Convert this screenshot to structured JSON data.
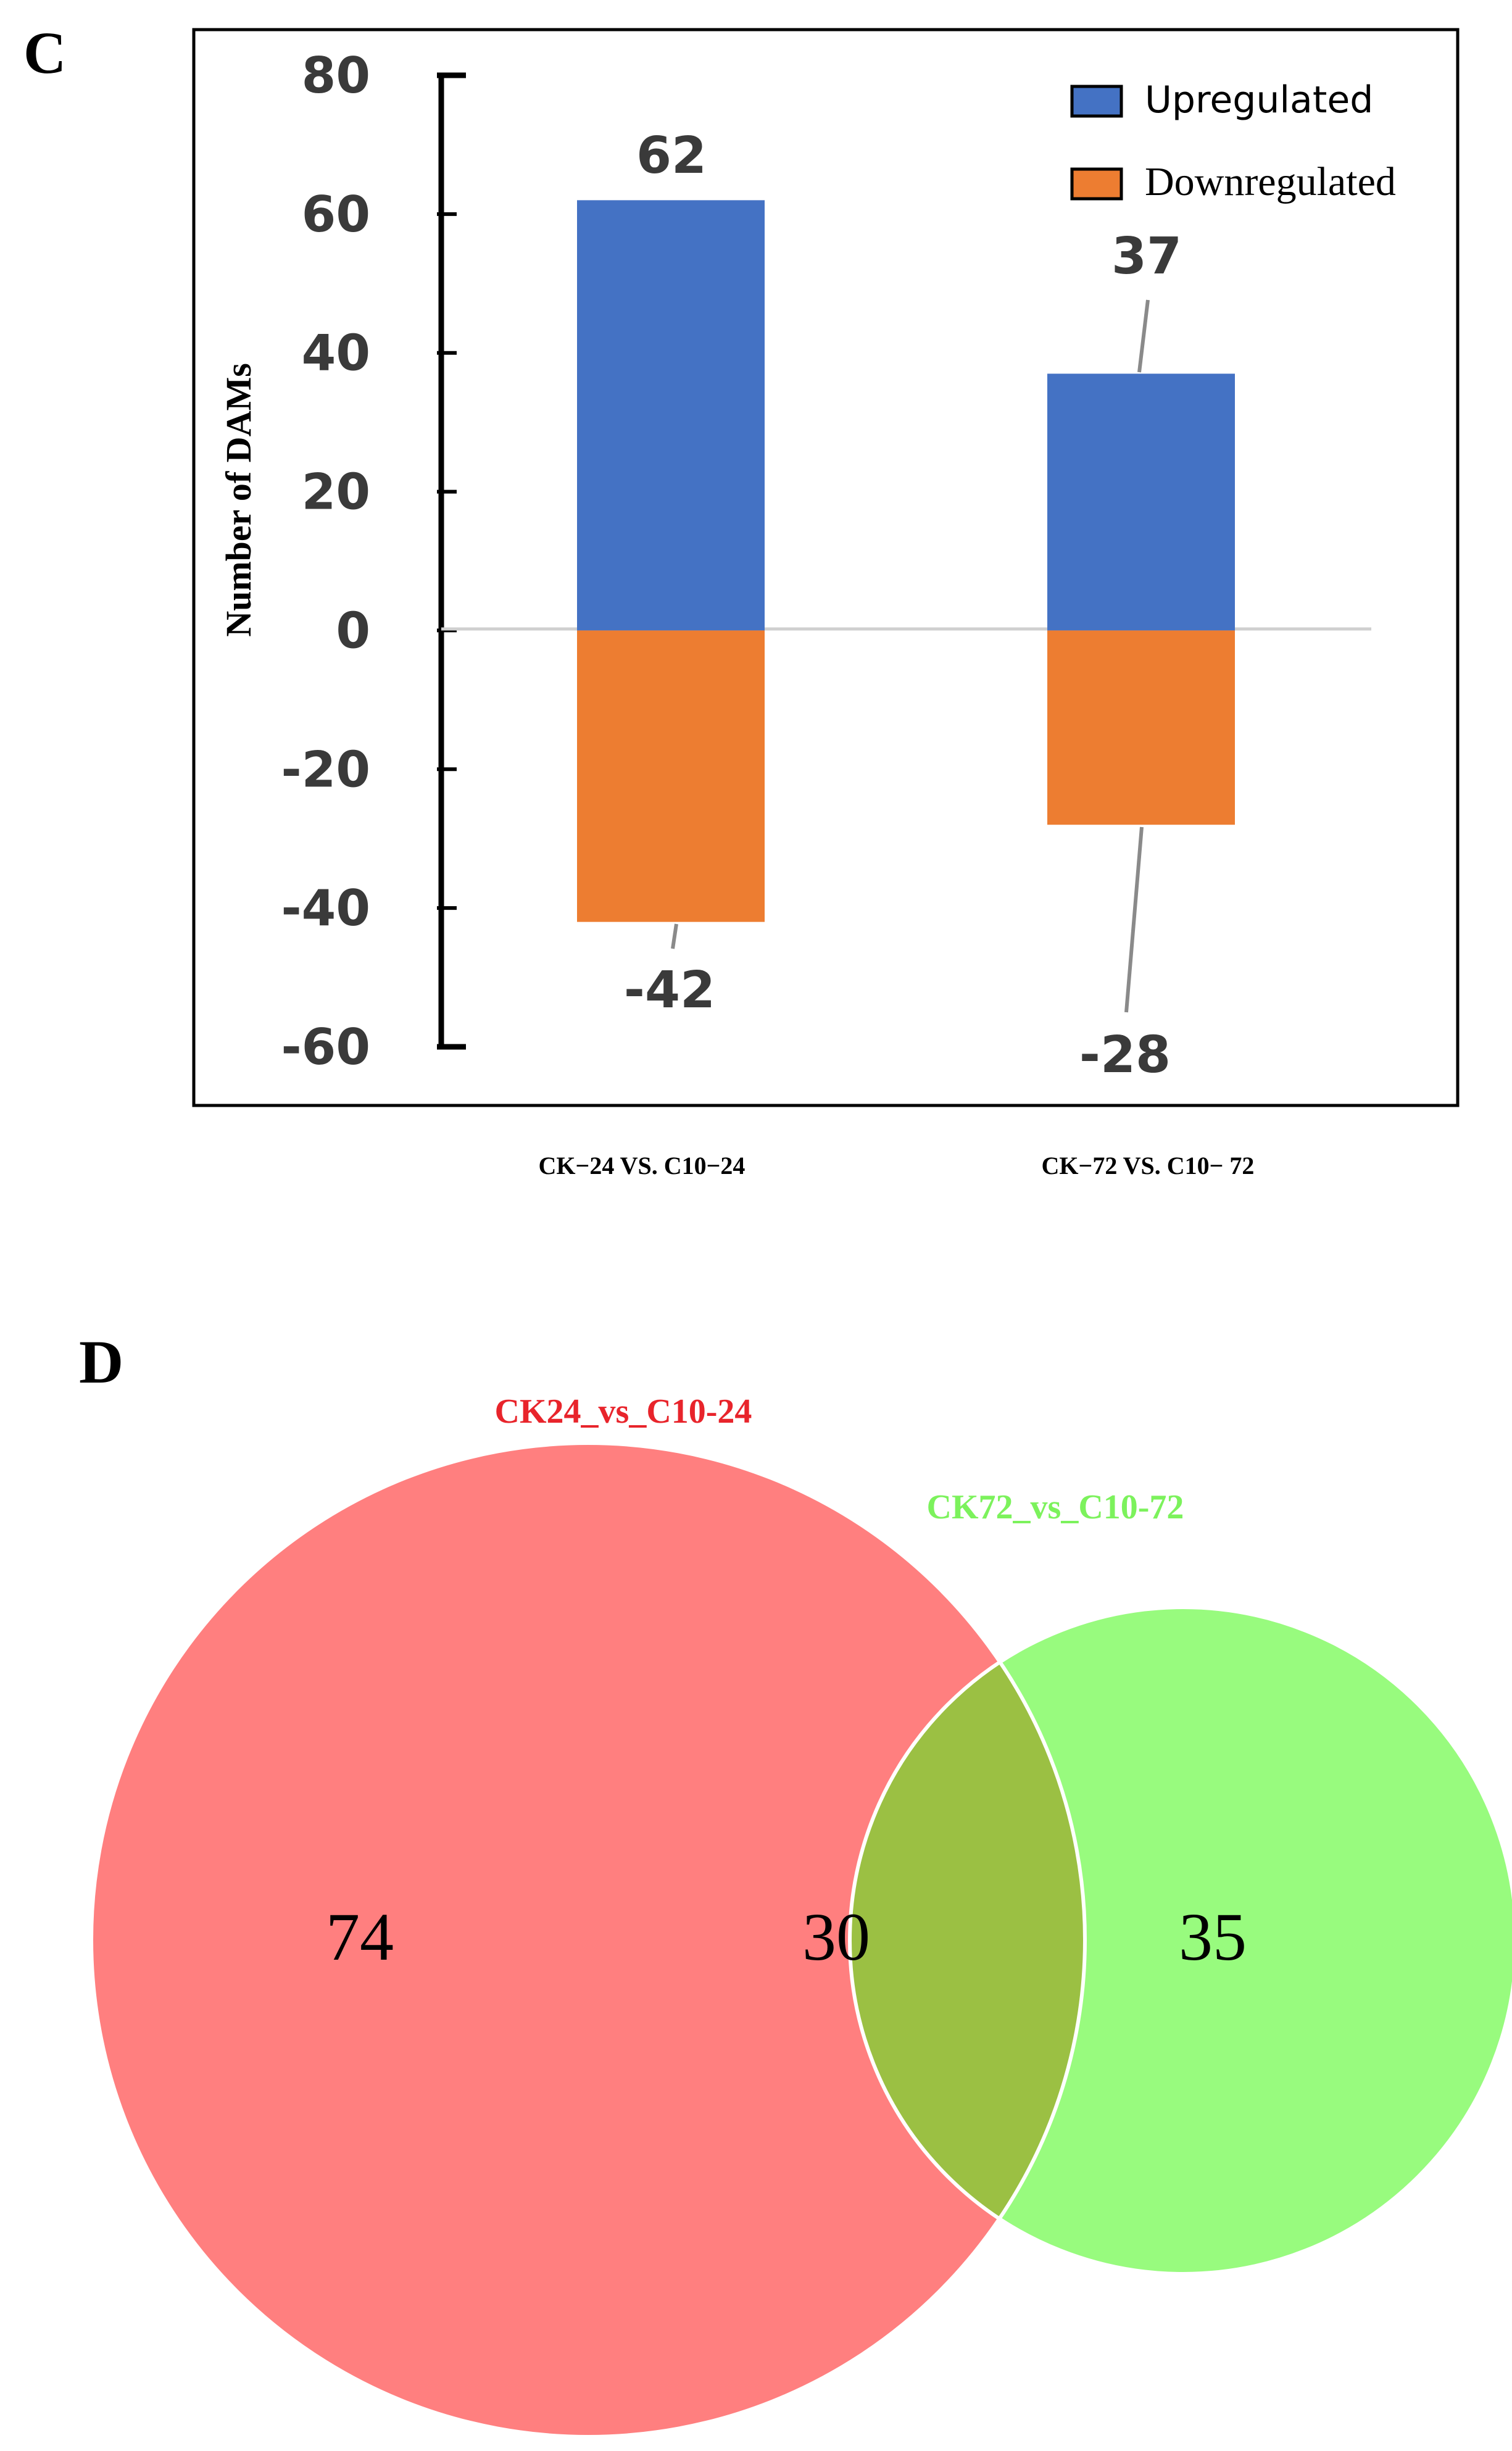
{
  "panels": {
    "c": {
      "label": "C"
    },
    "d": {
      "label": "D"
    }
  },
  "chart_data": [
    {
      "type": "bar",
      "panel": "C",
      "stacked": "diverging",
      "categories": [
        "CK−24 VS. C10−24",
        "CK−72 VS. C10− 72"
      ],
      "series": [
        {
          "name": "Upregulated",
          "values": [
            62,
            37
          ],
          "color": "#4472C4"
        },
        {
          "name": "Downregulated",
          "values": [
            -42,
            -28
          ],
          "color": "#ED7D31"
        }
      ],
      "data_labels": {
        "up": [
          "62",
          "37"
        ],
        "down": [
          "-42",
          "-28"
        ]
      },
      "ylabel": "Number of DAMs",
      "xlabel": "",
      "ylim": [
        -60,
        80
      ],
      "yticks": [
        80,
        60,
        40,
        20,
        0,
        -20,
        -40,
        -60
      ],
      "ytick_labels": [
        "80",
        "60",
        "40",
        "20",
        "0",
        "-20",
        "-40",
        "-60"
      ],
      "legend_position": "top-right"
    },
    {
      "type": "venn",
      "panel": "D",
      "sets": [
        {
          "name": "CK24_vs_C10-24",
          "color": "#FF7F7F",
          "label_color": "#E8242B"
        },
        {
          "name": "CK72_vs_C10-72",
          "color": "#98FB7E",
          "label_color": "#7CF25C"
        }
      ],
      "overlap_color": "#9BC043",
      "regions": {
        "only_a": "74",
        "both": "30",
        "only_b": "35"
      }
    }
  ]
}
